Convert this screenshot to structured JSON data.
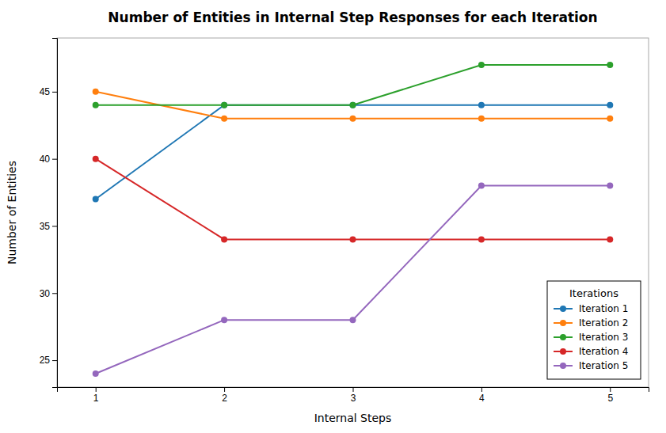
{
  "chart_data": {
    "type": "line",
    "title": "Number of Entities in Internal Step Responses for each Iteration",
    "xlabel": "Internal Steps",
    "ylabel": "Number of Entities",
    "legend_title": "Iterations",
    "x": [
      1,
      2,
      3,
      4,
      5
    ],
    "series": [
      {
        "name": "Iteration 1",
        "color": "#1f77b4",
        "values": [
          37,
          44,
          44,
          44,
          44
        ]
      },
      {
        "name": "Iteration 2",
        "color": "#ff7f0e",
        "values": [
          45,
          43,
          43,
          43,
          43
        ]
      },
      {
        "name": "Iteration 3",
        "color": "#2ca02c",
        "values": [
          44,
          44,
          44,
          47,
          47
        ]
      },
      {
        "name": "Iteration 4",
        "color": "#d62728",
        "values": [
          40,
          34,
          34,
          34,
          34
        ]
      },
      {
        "name": "Iteration 5",
        "color": "#9467bd",
        "values": [
          24,
          28,
          28,
          38,
          38
        ]
      }
    ],
    "xlim": [
      0.7,
      5.3
    ],
    "xticks": [
      1,
      2,
      3,
      4,
      5
    ],
    "ylim": [
      23,
      49
    ],
    "yticks": [
      25,
      30,
      35,
      40,
      45
    ],
    "legend": "lower right",
    "marker": "circle",
    "grid": false
  }
}
